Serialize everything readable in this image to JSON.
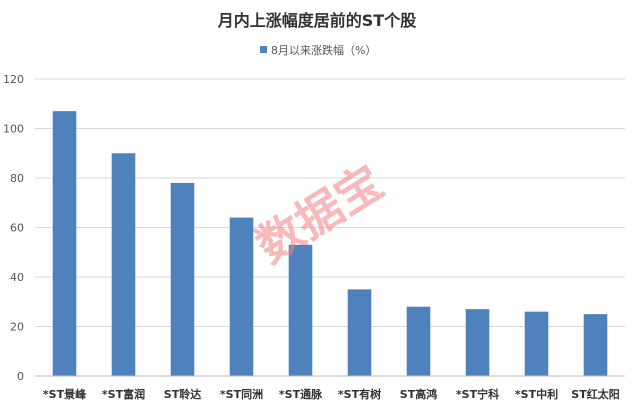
{
  "chart_data": {
    "type": "bar",
    "title": "月内上涨幅度居前的ST个股",
    "categories": [
      "*ST景峰",
      "*ST富润",
      "ST聆达",
      "*ST同洲",
      "*ST通脉",
      "*ST有树",
      "ST高鸿",
      "*ST宁科",
      "*ST中利",
      "ST红太阳"
    ],
    "series": [
      {
        "name": "8月以来涨跌幅（%）",
        "values": [
          107,
          90,
          78,
          64,
          53,
          35,
          28,
          27,
          26,
          25
        ],
        "color": "#4f81bd"
      }
    ],
    "xlabel": "",
    "ylabel": "",
    "ylim": [
      0,
      120
    ],
    "yticks": [
      0,
      20,
      40,
      60,
      80,
      100,
      120
    ],
    "grid": true,
    "legend": "top-center"
  },
  "watermark": {
    "text": "数据宝",
    "color": "#f08080"
  }
}
